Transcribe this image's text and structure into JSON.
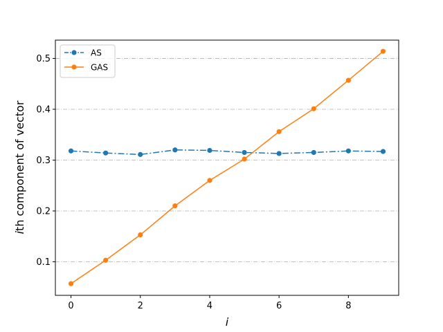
{
  "chart_data": {
    "type": "line",
    "xlabel": "i",
    "ylabel_italic": "i",
    "ylabel_rest": "th component of vector",
    "xlim": [
      -0.45,
      9.45
    ],
    "ylim": [
      0.034,
      0.536
    ],
    "x_ticks": [
      0,
      2,
      4,
      6,
      8
    ],
    "y_ticks": [
      0.1,
      0.2,
      0.3,
      0.4,
      0.5
    ],
    "x_tick_labels": [
      "0",
      "2",
      "4",
      "6",
      "8"
    ],
    "y_tick_labels": [
      "0.1",
      "0.2",
      "0.3",
      "0.4",
      "0.5"
    ],
    "grid": "horizontal dash-dot",
    "legend_position": "upper-left",
    "x": [
      0,
      1,
      2,
      3,
      4,
      5,
      6,
      7,
      8,
      9
    ],
    "series": [
      {
        "name": "AS",
        "color": "#1f77b4",
        "line_style": "dash-dot",
        "values": [
          0.318,
          0.314,
          0.311,
          0.32,
          0.319,
          0.315,
          0.313,
          0.315,
          0.318,
          0.317
        ]
      },
      {
        "name": "GAS",
        "color": "#ff7f0e",
        "line_style": "solid",
        "values": [
          0.057,
          0.103,
          0.153,
          0.21,
          0.26,
          0.302,
          0.356,
          0.401,
          0.457,
          0.514
        ]
      }
    ]
  }
}
